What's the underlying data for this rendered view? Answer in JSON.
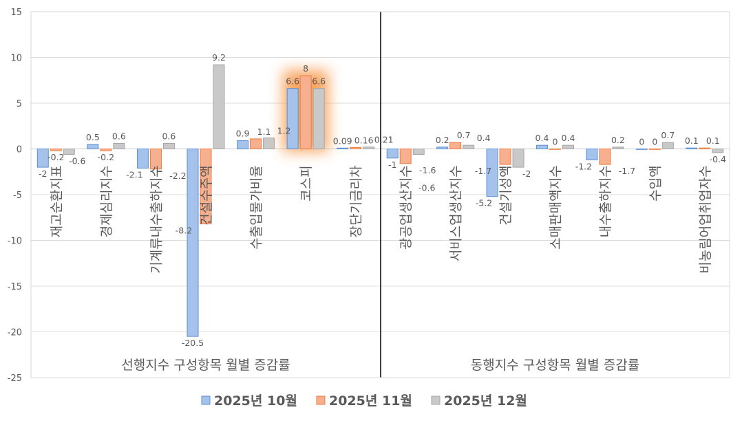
{
  "chart_data": {
    "type": "bar",
    "ylim": [
      -25,
      15
    ],
    "yticks": [
      -25,
      -20,
      -15,
      -10,
      -5,
      0,
      5,
      10,
      15
    ],
    "grid": true,
    "legend_position": "bottom",
    "highlighted_category": "코스피",
    "groups": [
      {
        "title": "선행지수 구성항목 월별 증감률",
        "categories": [
          "재고순환지표",
          "경제심리지수",
          "기계류내수출하지수",
          "건설수주액",
          "수출입물가비율",
          "코스피",
          "장단기금리차"
        ],
        "series": [
          {
            "name": "2025년 10월",
            "values": [
              -2,
              0.5,
              -2.1,
              -20.5,
              0.9,
              6.6,
              0.09
            ]
          },
          {
            "name": "2025년 11월",
            "values": [
              -0.2,
              -0.2,
              -2.2,
              -8.2,
              1.1,
              8,
              0.16
            ]
          },
          {
            "name": "2025년 12월",
            "values": [
              -0.6,
              0.6,
              0.6,
              9.2,
              1.2,
              6.6,
              0.21
            ]
          }
        ]
      },
      {
        "title": "동행지수 구성항목 월별 증감률",
        "categories": [
          "광공업생산지수",
          "서비스업생산지수",
          "건설기성액",
          "소매판매액지수",
          "내수출하지수",
          "수입액",
          "비농림어업취업자수"
        ],
        "series": [
          {
            "name": "2025년 10월",
            "values": [
              -1,
              0.2,
              -5.2,
              0.4,
              -1.2,
              0,
              0.1
            ]
          },
          {
            "name": "2025년 11월",
            "values": [
              -1.6,
              0.7,
              -1.7,
              0,
              -1.7,
              0,
              0.1
            ]
          },
          {
            "name": "2025년 12월",
            "values": [
              -0.6,
              0.4,
              -2,
              0.4,
              0.2,
              0.7,
              -0.4
            ]
          }
        ]
      }
    ],
    "legend": [
      "2025년 10월",
      "2025년 11월",
      "2025년 12월"
    ],
    "colors": {
      "fill": [
        "#a4c2ea",
        "#f6b08f",
        "#c9c9c9"
      ],
      "stroke": [
        "#5b8fd4",
        "#ec7d3c",
        "#a5a5a5"
      ],
      "highlight": "#f79646"
    }
  }
}
